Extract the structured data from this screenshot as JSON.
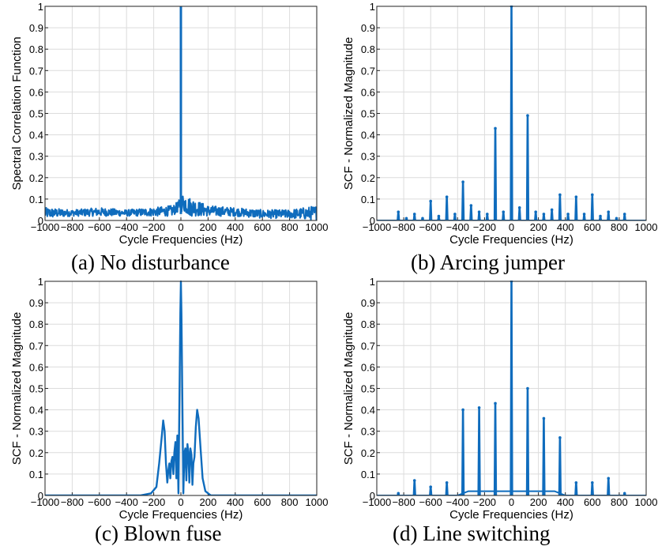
{
  "colors": {
    "line": "#0f6cbd",
    "grid": "#dcdcdc",
    "axis": "#222222"
  },
  "chart_data": [
    {
      "type": "line",
      "caption": "(a) No disturbance",
      "xlabel": "Cycle Frequencies (Hz)",
      "ylabel": "Spectral Correlation Function",
      "xlim": [
        -1000,
        1000
      ],
      "ylim": [
        0,
        1
      ],
      "xticks": [
        -1000,
        -800,
        -600,
        -400,
        -200,
        0,
        200,
        400,
        600,
        800,
        1000
      ],
      "yticks": [
        0,
        0.1,
        0.2,
        0.3,
        0.4,
        0.5,
        0.6,
        0.7,
        0.8,
        0.9,
        1
      ],
      "grid": true,
      "series": [
        {
          "style": "noise",
          "noise_envelope": {
            "x": [
              -1000,
              -800,
              -600,
              -400,
              -200,
              -60,
              -20,
              0,
              20,
              60,
              200,
              400,
              600,
              800,
              1000
            ],
            "upper": [
              0.06,
              0.05,
              0.06,
              0.05,
              0.06,
              0.07,
              0.09,
              0.11,
              0.13,
              0.11,
              0.07,
              0.06,
              0.05,
              0.05,
              0.07
            ],
            "lower": [
              0.01,
              0.02,
              0.02,
              0.02,
              0.02,
              0.02,
              0.04,
              0.04,
              0.04,
              0.02,
              0.02,
              0.02,
              0.01,
              0.01,
              0.0
            ]
          },
          "peaks": [
            {
              "x": 0,
              "y": 1.0
            }
          ]
        }
      ]
    },
    {
      "type": "line",
      "caption": "(b) Arcing jumper",
      "xlabel": "Cycle Frequencies (Hz)",
      "ylabel": "SCF - Normalized Magnitude",
      "xlim": [
        -1000,
        1000
      ],
      "ylim": [
        0,
        1
      ],
      "xticks": [
        -1000,
        -800,
        -600,
        -400,
        -200,
        0,
        200,
        400,
        600,
        800,
        1000
      ],
      "yticks": [
        0,
        0.1,
        0.2,
        0.3,
        0.4,
        0.5,
        0.6,
        0.7,
        0.8,
        0.9,
        1
      ],
      "grid": true,
      "series": [
        {
          "style": "spikes",
          "peaks": [
            {
              "x": -840,
              "y": 0.04
            },
            {
              "x": -780,
              "y": 0.01
            },
            {
              "x": -720,
              "y": 0.03
            },
            {
              "x": -660,
              "y": 0.01
            },
            {
              "x": -600,
              "y": 0.09
            },
            {
              "x": -540,
              "y": 0.02
            },
            {
              "x": -480,
              "y": 0.11
            },
            {
              "x": -420,
              "y": 0.03
            },
            {
              "x": -360,
              "y": 0.18
            },
            {
              "x": -300,
              "y": 0.07
            },
            {
              "x": -240,
              "y": 0.04
            },
            {
              "x": -180,
              "y": 0.03
            },
            {
              "x": -120,
              "y": 0.43
            },
            {
              "x": -60,
              "y": 0.04
            },
            {
              "x": 0,
              "y": 1.0
            },
            {
              "x": 60,
              "y": 0.06
            },
            {
              "x": 120,
              "y": 0.49
            },
            {
              "x": 180,
              "y": 0.04
            },
            {
              "x": 240,
              "y": 0.03
            },
            {
              "x": 300,
              "y": 0.05
            },
            {
              "x": 360,
              "y": 0.12
            },
            {
              "x": 420,
              "y": 0.03
            },
            {
              "x": 480,
              "y": 0.11
            },
            {
              "x": 540,
              "y": 0.03
            },
            {
              "x": 600,
              "y": 0.12
            },
            {
              "x": 660,
              "y": 0.02
            },
            {
              "x": 720,
              "y": 0.04
            },
            {
              "x": 780,
              "y": 0.01
            },
            {
              "x": 840,
              "y": 0.03
            }
          ]
        }
      ]
    },
    {
      "type": "line",
      "caption": "(c) Blown fuse",
      "xlabel": "Cycle Frequencies (Hz)",
      "ylabel": "SCF - Normalized Magnitude",
      "xlim": [
        -1000,
        1000
      ],
      "ylim": [
        0,
        1
      ],
      "xticks": [
        -1000,
        -800,
        -600,
        -400,
        -200,
        0,
        200,
        400,
        600,
        800,
        1000
      ],
      "yticks": [
        0,
        0.1,
        0.2,
        0.3,
        0.4,
        0.5,
        0.6,
        0.7,
        0.8,
        0.9,
        1
      ],
      "grid": true,
      "series": [
        {
          "style": "curve",
          "points": [
            [
              -1000,
              0
            ],
            [
              -300,
              0
            ],
            [
              -220,
              0.01
            ],
            [
              -180,
              0.04
            ],
            [
              -160,
              0.15
            ],
            [
              -140,
              0.28
            ],
            [
              -130,
              0.35
            ],
            [
              -120,
              0.3
            ],
            [
              -110,
              0.15
            ],
            [
              -100,
              0.06
            ],
            [
              -92,
              0.12
            ],
            [
              -85,
              0.15
            ],
            [
              -78,
              0.08
            ],
            [
              -70,
              0.16
            ],
            [
              -62,
              0.18
            ],
            [
              -55,
              0.1
            ],
            [
              -48,
              0.2
            ],
            [
              -40,
              0.25
            ],
            [
              -33,
              0.08
            ],
            [
              -26,
              0.28
            ],
            [
              -18,
              0.01
            ],
            [
              -10,
              0.5
            ],
            [
              -4,
              0.85
            ],
            [
              0,
              1.0
            ],
            [
              4,
              0.85
            ],
            [
              10,
              0.5
            ],
            [
              18,
              0.01
            ],
            [
              26,
              0.2
            ],
            [
              33,
              0.22
            ],
            [
              40,
              0.07
            ],
            [
              48,
              0.24
            ],
            [
              55,
              0.2
            ],
            [
              62,
              0.06
            ],
            [
              70,
              0.22
            ],
            [
              78,
              0.19
            ],
            [
              85,
              0.05
            ],
            [
              92,
              0.15
            ],
            [
              100,
              0.18
            ],
            [
              110,
              0.32
            ],
            [
              120,
              0.4
            ],
            [
              130,
              0.36
            ],
            [
              145,
              0.22
            ],
            [
              160,
              0.08
            ],
            [
              180,
              0.02
            ],
            [
              220,
              0.0
            ],
            [
              1000,
              0
            ]
          ]
        }
      ]
    },
    {
      "type": "line",
      "caption": "(d) Line switching",
      "xlabel": "Cycle Frequencies (Hz)",
      "ylabel": "SCF - Normalized Magnitude",
      "xlim": [
        -1000,
        1000
      ],
      "ylim": [
        0,
        1
      ],
      "xticks": [
        -1000,
        -800,
        -600,
        -400,
        -200,
        0,
        200,
        400,
        600,
        800,
        1000
      ],
      "yticks": [
        0,
        0.1,
        0.2,
        0.3,
        0.4,
        0.5,
        0.6,
        0.7,
        0.8,
        0.9,
        1
      ],
      "grid": true,
      "series": [
        {
          "style": "spikes",
          "baseline_bump": {
            "from": -400,
            "to": 400,
            "height": 0.02
          },
          "peaks": [
            {
              "x": -840,
              "y": 0.01
            },
            {
              "x": -720,
              "y": 0.07
            },
            {
              "x": -600,
              "y": 0.04
            },
            {
              "x": -480,
              "y": 0.06
            },
            {
              "x": -360,
              "y": 0.4
            },
            {
              "x": -240,
              "y": 0.41
            },
            {
              "x": -120,
              "y": 0.43
            },
            {
              "x": 0,
              "y": 1.0
            },
            {
              "x": 120,
              "y": 0.5
            },
            {
              "x": 240,
              "y": 0.36
            },
            {
              "x": 360,
              "y": 0.27
            },
            {
              "x": 480,
              "y": 0.06
            },
            {
              "x": 600,
              "y": 0.06
            },
            {
              "x": 720,
              "y": 0.08
            },
            {
              "x": 840,
              "y": 0.01
            }
          ]
        }
      ]
    }
  ]
}
